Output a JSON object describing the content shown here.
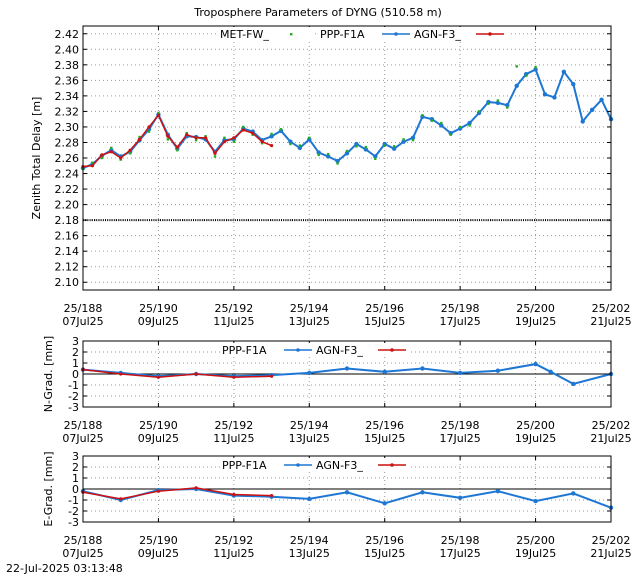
{
  "figure": {
    "title": "Troposphere Parameters of DYNG (510.58 m)",
    "timestamp": "22-Jul-2025 03:13:48"
  },
  "colors": {
    "met": "#22aa22",
    "ppp": "#1f77d4",
    "agn": "#cc1111",
    "grid": "#9a9a9a",
    "axis": "#000000",
    "baseline": "#000000"
  },
  "chart_data": [
    {
      "type": "scatter",
      "panel": "ztd",
      "title": "Troposphere Parameters of DYNG (510.58 m)",
      "ylabel": "Zenith Total Delay [m]",
      "xlabel": "",
      "xlim": [
        188,
        202
      ],
      "ylim": [
        2.09,
        2.43
      ],
      "yticks": [
        2.1,
        2.12,
        2.14,
        2.16,
        2.18,
        2.2,
        2.22,
        2.24,
        2.26,
        2.28,
        2.3,
        2.32,
        2.34,
        2.36,
        2.38,
        2.4,
        2.42
      ],
      "ytick_labels": [
        "2.10",
        "2.12",
        "2.14",
        "2.16",
        "2.18",
        "2.20",
        "2.22",
        "2.24",
        "2.26",
        "2.28",
        "2.30",
        "2.32",
        "2.34",
        "2.36",
        "2.38",
        "2.40",
        "2.42"
      ],
      "xticks": [
        188,
        190,
        192,
        194,
        196,
        198,
        200,
        202
      ],
      "xtick_labels": [
        [
          "25/188",
          "07Jul25"
        ],
        [
          "25/190",
          "09Jul25"
        ],
        [
          "25/192",
          "11Jul25"
        ],
        [
          "25/194",
          "13Jul25"
        ],
        [
          "25/196",
          "15Jul25"
        ],
        [
          "25/198",
          "17Jul25"
        ],
        [
          "25/200",
          "19Jul25"
        ],
        [
          "25/202",
          "21Jul25"
        ]
      ],
      "grid": true,
      "legend": [
        "MET-FW_",
        "PPP-F1A",
        "AGN-F3_"
      ],
      "legend_position": "top",
      "baseline_value": 2.18,
      "series": [
        {
          "name": "PPP-F1A",
          "x": [
            188.0,
            188.25,
            188.5,
            188.75,
            189.0,
            189.25,
            189.5,
            189.75,
            190.0,
            190.25,
            190.5,
            190.75,
            191.0,
            191.25,
            191.5,
            191.75,
            192.0,
            192.25,
            192.5,
            192.75,
            193.0,
            193.25,
            193.5,
            193.75,
            194.0,
            194.25,
            194.5,
            194.75,
            195.0,
            195.25,
            195.5,
            195.75,
            196.0,
            196.25,
            196.5,
            196.75,
            197.0,
            197.25,
            197.5,
            197.75,
            198.0,
            198.25,
            198.5,
            198.75,
            199.0,
            199.25,
            199.5,
            199.75,
            200.0,
            200.25,
            200.5,
            200.75,
            201.0,
            201.25,
            201.5,
            201.75,
            202.0
          ],
          "values": [
            2.247,
            2.252,
            2.263,
            2.27,
            2.262,
            2.268,
            2.283,
            2.297,
            2.316,
            2.29,
            2.272,
            2.288,
            2.287,
            2.284,
            2.268,
            2.283,
            2.284,
            2.298,
            2.294,
            2.283,
            2.288,
            2.295,
            2.281,
            2.273,
            2.284,
            2.267,
            2.262,
            2.256,
            2.266,
            2.278,
            2.271,
            2.262,
            2.278,
            2.272,
            2.281,
            2.286,
            2.313,
            2.31,
            2.302,
            2.292,
            2.298,
            2.305,
            2.318,
            2.332,
            2.331,
            2.328,
            2.353,
            2.368,
            2.374,
            2.342,
            2.338,
            2.371,
            2.355,
            2.307,
            2.322,
            2.335,
            2.31
          ]
        },
        {
          "name": "AGN-F3_",
          "x": [
            188.0,
            188.25,
            188.5,
            188.75,
            189.0,
            189.25,
            189.5,
            189.75,
            190.0,
            190.25,
            190.5,
            190.75,
            191.0,
            191.25,
            191.5,
            191.75,
            192.0,
            192.25,
            192.5,
            192.75,
            193.0
          ],
          "values": [
            2.249,
            2.25,
            2.264,
            2.268,
            2.26,
            2.27,
            2.284,
            2.3,
            2.315,
            2.288,
            2.274,
            2.29,
            2.286,
            2.286,
            2.266,
            2.281,
            2.286,
            2.296,
            2.292,
            2.281,
            2.276
          ]
        },
        {
          "name": "MET-FW_",
          "x": [
            188.0,
            188.25,
            188.5,
            188.75,
            189.0,
            189.25,
            189.5,
            189.75,
            190.0,
            190.25,
            190.5,
            190.75,
            191.0,
            191.25,
            191.5,
            191.75,
            192.0,
            192.25,
            192.5,
            192.75,
            193.0,
            193.25,
            193.5,
            193.75,
            194.0,
            194.25,
            194.5,
            194.75,
            195.0,
            195.25,
            195.5,
            195.75,
            196.0,
            196.25,
            196.5,
            196.75,
            197.0,
            197.25,
            197.5,
            197.75,
            198.0,
            198.25,
            198.5,
            198.75,
            199.0,
            199.25,
            199.5,
            199.75,
            200.0
          ],
          "values": [
            2.246,
            2.254,
            2.26,
            2.273,
            2.258,
            2.266,
            2.287,
            2.294,
            2.318,
            2.284,
            2.27,
            2.292,
            2.283,
            2.288,
            2.262,
            2.286,
            2.281,
            2.3,
            2.29,
            2.279,
            2.291,
            2.297,
            2.278,
            2.276,
            2.286,
            2.264,
            2.265,
            2.253,
            2.269,
            2.275,
            2.274,
            2.259,
            2.276,
            2.275,
            2.284,
            2.283,
            2.315,
            2.308,
            2.305,
            2.29,
            2.3,
            2.302,
            2.32,
            2.33,
            2.334,
            2.325,
            2.378,
            2.366,
            2.377
          ]
        }
      ]
    },
    {
      "type": "line",
      "panel": "ngrad",
      "ylabel": "N-Grad. [mm]",
      "xlabel": "",
      "xlim": [
        188,
        202
      ],
      "ylim": [
        -3,
        3
      ],
      "yticks": [
        -3,
        -2,
        -1,
        0,
        1,
        2,
        3
      ],
      "ytick_labels": [
        "-3",
        "-2",
        "-1",
        "0",
        "1",
        "2",
        "3"
      ],
      "xticks": [
        188,
        190,
        192,
        194,
        196,
        198,
        200,
        202
      ],
      "xtick_labels": [
        [
          "25/188",
          "07Jul25"
        ],
        [
          "25/190",
          "09Jul25"
        ],
        [
          "25/192",
          "11Jul25"
        ],
        [
          "25/194",
          "13Jul25"
        ],
        [
          "25/196",
          "15Jul25"
        ],
        [
          "25/198",
          "17Jul25"
        ],
        [
          "25/200",
          "19Jul25"
        ],
        [
          "25/202",
          "21Jul25"
        ]
      ],
      "grid": true,
      "legend": [
        "PPP-F1A",
        "AGN-F3_"
      ],
      "legend_position": "top",
      "baseline_value": 0,
      "series": [
        {
          "name": "PPP-F1A",
          "x": [
            188,
            189,
            190,
            191,
            192,
            193,
            194,
            195,
            196,
            197,
            198,
            199,
            200,
            200.4,
            201,
            202
          ],
          "values": [
            0.4,
            0.1,
            -0.2,
            0.0,
            -0.2,
            -0.1,
            0.1,
            0.5,
            0.2,
            0.5,
            0.1,
            0.3,
            0.9,
            0.2,
            -0.9,
            0.0
          ]
        },
        {
          "name": "AGN-F3_",
          "x": [
            188,
            189,
            190,
            191,
            192,
            193
          ],
          "values": [
            0.4,
            0.0,
            -0.3,
            0.0,
            -0.3,
            -0.2
          ]
        }
      ]
    },
    {
      "type": "line",
      "panel": "egrad",
      "ylabel": "E-Grad. [mm]",
      "xlabel": "",
      "xlim": [
        188,
        202
      ],
      "ylim": [
        -3,
        3
      ],
      "yticks": [
        -3,
        -2,
        -1,
        0,
        1,
        2,
        3
      ],
      "ytick_labels": [
        "-3",
        "-2",
        "-1",
        "0",
        "1",
        "2",
        "3"
      ],
      "xticks": [
        188,
        190,
        192,
        194,
        196,
        198,
        200,
        202
      ],
      "xtick_labels": [
        [
          "25/188",
          "07Jul25"
        ],
        [
          "25/190",
          "09Jul25"
        ],
        [
          "25/192",
          "11Jul25"
        ],
        [
          "25/194",
          "13Jul25"
        ],
        [
          "25/196",
          "15Jul25"
        ],
        [
          "25/198",
          "17Jul25"
        ],
        [
          "25/200",
          "19Jul25"
        ],
        [
          "25/202",
          "21Jul25"
        ]
      ],
      "grid": true,
      "legend": [
        "PPP-F1A",
        "AGN-F3_"
      ],
      "legend_position": "top",
      "baseline_value": 0,
      "series": [
        {
          "name": "PPP-F1A",
          "x": [
            188,
            189,
            190,
            191,
            192,
            193,
            194,
            195,
            196,
            197,
            198,
            199,
            200,
            201,
            202
          ],
          "values": [
            -0.2,
            -1.0,
            -0.1,
            0.0,
            -0.6,
            -0.7,
            -0.9,
            -0.3,
            -1.3,
            -0.3,
            -0.8,
            -0.2,
            -1.1,
            -0.4,
            -1.7
          ]
        },
        {
          "name": "AGN-F3_",
          "x": [
            188,
            189,
            190,
            191,
            192,
            193
          ],
          "values": [
            -0.3,
            -0.9,
            -0.2,
            0.1,
            -0.5,
            -0.6
          ]
        }
      ]
    }
  ]
}
